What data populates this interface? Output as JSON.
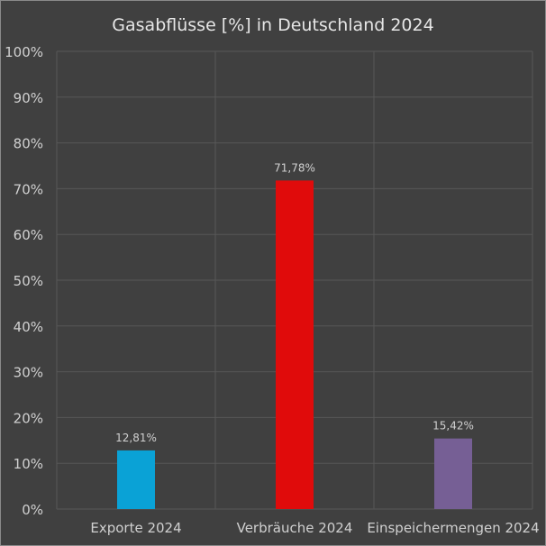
{
  "chart_data": {
    "type": "bar",
    "title": "Gasabflüsse [%] in Deutschland 2024",
    "categories": [
      "Exporte 2024",
      "Verbräuche 2024",
      "Einspeichermengen 2024"
    ],
    "values": [
      12.81,
      71.78,
      15.42
    ],
    "data_labels": [
      "12,81%",
      "71,78%",
      "15,42%"
    ],
    "colors": [
      "#0aa2d6",
      "#e00b0b",
      "#765f95"
    ],
    "xlabel": "",
    "ylabel": "",
    "ylim": [
      0,
      100
    ],
    "yticks": [
      0,
      10,
      20,
      30,
      40,
      50,
      60,
      70,
      80,
      90,
      100
    ],
    "ytick_labels": [
      "0%",
      "10%",
      "20%",
      "30%",
      "40%",
      "50%",
      "60%",
      "70%",
      "80%",
      "90%",
      "100%"
    ],
    "grid": true,
    "legend": "none"
  }
}
